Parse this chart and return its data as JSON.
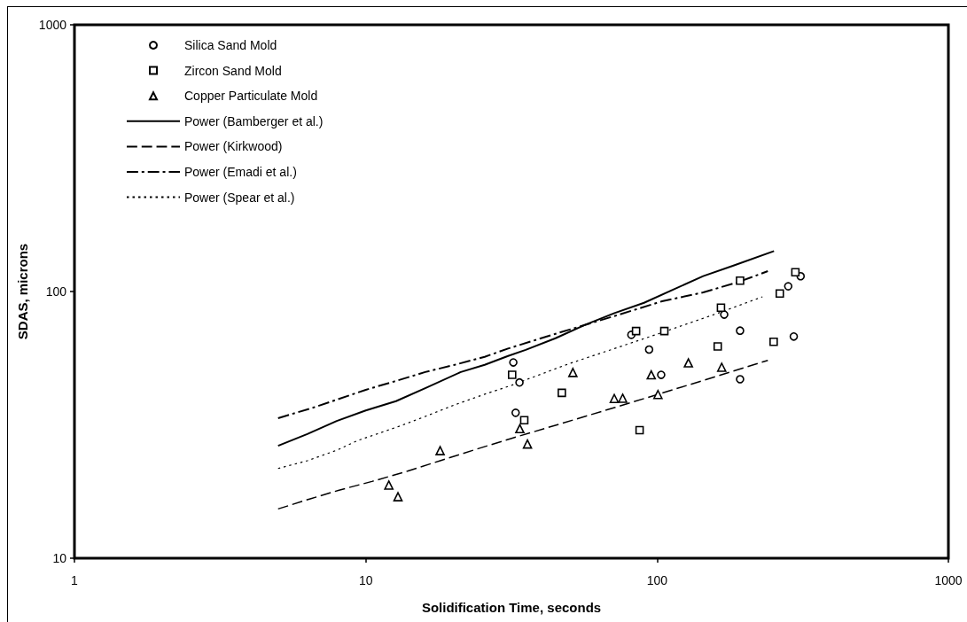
{
  "chart_data": {
    "type": "scatter",
    "xlabel": "Solidification Time, seconds",
    "ylabel": "SDAS, microns",
    "log": "xy",
    "xlim": [
      1,
      1000
    ],
    "ylim": [
      10,
      1000
    ],
    "xticks": [
      1,
      10,
      100,
      1000
    ],
    "yticks": [
      10,
      100,
      1000
    ],
    "legend": "top left",
    "series": [
      {
        "name": "Silica Sand Mold",
        "marker": "circle",
        "color": "#000000",
        "x": [
          32.1,
          33.7,
          32.7,
          81.6,
          93.9,
          103.3,
          170,
          192.7,
          192.7,
          282,
          311,
          294.6
        ],
        "values": [
          54.2,
          45.6,
          35.1,
          68.8,
          60.6,
          48.7,
          81.9,
          71.3,
          46.9,
          104.6,
          114.1,
          67.8
        ]
      },
      {
        "name": "Zircon Sand Mold",
        "marker": "square",
        "color": "#000000",
        "x": [
          31.8,
          47.1,
          35,
          87.1,
          84.7,
          105.9,
          161.5,
          165.7,
          192.7,
          251.3,
          263.8,
          298.4
        ],
        "values": [
          48.7,
          41.7,
          32.9,
          30.2,
          71.1,
          71.1,
          62.2,
          87,
          109.8,
          64.8,
          98.3,
          118.1
        ]
      },
      {
        "name": "Copper Particulate Mold",
        "marker": "triangle",
        "color": "#000000",
        "x": [
          12,
          12.9,
          18,
          33.8,
          35.9,
          51.4,
          71.3,
          76.2,
          95.5,
          100.7,
          128.1,
          166.7
        ],
        "values": [
          18.8,
          17,
          25.3,
          30.6,
          26.8,
          49.7,
          39.7,
          39.8,
          48.7,
          41.1,
          54,
          52
        ]
      },
      {
        "name": "Power (Bamberger et al.)",
        "type": "line",
        "line_style": "solid",
        "color": "#000000",
        "x": [
          5,
          6.3,
          7.95,
          10,
          12.7,
          16,
          21.2,
          25.6,
          30.8,
          35.4,
          44.8,
          56.6,
          71.4,
          90.2,
          114,
          144,
          182,
          252
        ],
        "values": [
          26.4,
          29.2,
          32.7,
          35.8,
          38.8,
          43.4,
          49.9,
          53.1,
          57.3,
          60.4,
          66.8,
          75,
          83,
          90.7,
          101.8,
          114.2,
          124.9,
          141.8
        ]
      },
      {
        "name": "Power (Kirkwood)",
        "type": "line",
        "line_style": "dashed",
        "color": "#000000",
        "x": [
          5,
          6.45,
          8.1,
          10.5,
          13.9,
          18,
          25,
          31.5,
          44.8,
          71.4,
          101,
          144,
          240
        ],
        "values": [
          15.3,
          16.7,
          18,
          19.4,
          21.2,
          23.2,
          26,
          28.1,
          31.5,
          36.7,
          41.2,
          46.4,
          55.2
        ]
      },
      {
        "name": "Power (Emadi et al.)",
        "type": "line",
        "line_style": "dashdot",
        "color": "#000000",
        "x": [
          5,
          6.6,
          7.95,
          10,
          12.7,
          16,
          20.2,
          25.6,
          30.8,
          44.8,
          71.4,
          104,
          144,
          190,
          240
        ],
        "values": [
          33.5,
          36.7,
          39.3,
          42.8,
          46.2,
          49.9,
          53.1,
          56.9,
          61.1,
          69.4,
          80.9,
          91.9,
          99.2,
          108.5,
          119.2
        ]
      },
      {
        "name": "Power (Spear et al.)",
        "type": "line",
        "line_style": "dotted",
        "color": "#000000",
        "x": [
          5,
          6.3,
          7.95,
          9.36,
          11.3,
          13.3,
          16,
          20.2,
          25.6,
          31.5,
          38,
          50.3,
          71.4,
          101,
          162,
          230
        ],
        "values": [
          21.7,
          23.2,
          25.4,
          27.6,
          29.6,
          31.5,
          34,
          37.6,
          41.2,
          44.4,
          48,
          53.8,
          61.1,
          69.4,
          83,
          95.5
        ]
      }
    ]
  }
}
